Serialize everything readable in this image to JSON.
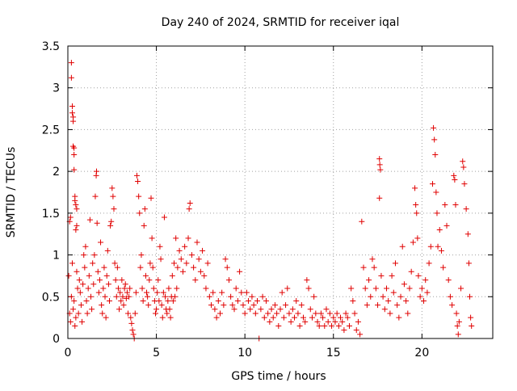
{
  "chart_data": {
    "type": "scatter",
    "title": "Day 240 of 2024, SRMTID for receiver iqal",
    "xlabel": "GPS time / hours",
    "ylabel": "SRMTID / TECUs",
    "xlim": [
      0,
      24
    ],
    "ylim": [
      0,
      3.5
    ],
    "xticks": [
      0,
      5,
      10,
      15,
      20
    ],
    "xtick_labels": [
      "0",
      "5",
      "10",
      "15",
      "20"
    ],
    "yticks": [
      0,
      0.5,
      1,
      1.5,
      2,
      2.5,
      3,
      3.5
    ],
    "ytick_labels": [
      "0",
      "0.5",
      "1",
      "1.5",
      "2",
      "2.5",
      "3",
      "3.5"
    ],
    "grid": true,
    "marker": "+",
    "series": [
      {
        "name": "SRMTID",
        "color": "#e00000",
        "points": [
          [
            0.05,
            0.75
          ],
          [
            0.1,
            1.4
          ],
          [
            0.15,
            1.45
          ],
          [
            0.2,
            3.3
          ],
          [
            0.2,
            3.12
          ],
          [
            0.25,
            2.78
          ],
          [
            0.25,
            2.7
          ],
          [
            0.3,
            2.65
          ],
          [
            0.3,
            2.6
          ],
          [
            0.3,
            2.3
          ],
          [
            0.35,
            2.28
          ],
          [
            0.35,
            2.2
          ],
          [
            0.35,
            2.02
          ],
          [
            0.4,
            1.7
          ],
          [
            0.4,
            1.65
          ],
          [
            0.45,
            1.6
          ],
          [
            0.5,
            1.55
          ],
          [
            0.5,
            1.35
          ],
          [
            0.45,
            1.3
          ],
          [
            0.1,
            0.3
          ],
          [
            0.15,
            0.2
          ],
          [
            0.2,
            0.5
          ],
          [
            0.25,
            0.9
          ],
          [
            0.3,
            0.35
          ],
          [
            0.35,
            0.45
          ],
          [
            0.4,
            0.15
          ],
          [
            0.45,
            0.25
          ],
          [
            0.5,
            0.8
          ],
          [
            0.55,
            0.6
          ],
          [
            0.6,
            0.3
          ],
          [
            0.65,
            0.7
          ],
          [
            0.7,
            0.55
          ],
          [
            0.75,
            0.4
          ],
          [
            0.8,
            0.2
          ],
          [
            0.85,
            0.65
          ],
          [
            0.9,
            1.0
          ],
          [
            0.95,
            0.85
          ],
          [
            1.0,
            1.1
          ],
          [
            1.05,
            0.45
          ],
          [
            1.1,
            0.3
          ],
          [
            1.15,
            0.6
          ],
          [
            1.2,
            0.75
          ],
          [
            1.25,
            1.42
          ],
          [
            1.3,
            0.5
          ],
          [
            1.35,
            0.35
          ],
          [
            1.4,
            0.9
          ],
          [
            1.45,
            0.65
          ],
          [
            1.5,
            1.0
          ],
          [
            1.55,
            1.7
          ],
          [
            1.6,
            1.95
          ],
          [
            1.62,
            2.0
          ],
          [
            1.65,
            1.38
          ],
          [
            1.7,
            0.8
          ],
          [
            1.75,
            0.55
          ],
          [
            1.8,
            0.7
          ],
          [
            1.85,
            1.15
          ],
          [
            1.9,
            0.4
          ],
          [
            1.95,
            0.3
          ],
          [
            2.0,
            0.6
          ],
          [
            2.05,
            0.85
          ],
          [
            2.1,
            0.5
          ],
          [
            2.15,
            0.25
          ],
          [
            2.2,
            0.75
          ],
          [
            2.25,
            1.05
          ],
          [
            2.3,
            0.65
          ],
          [
            2.35,
            0.45
          ],
          [
            2.4,
            1.35
          ],
          [
            2.45,
            1.4
          ],
          [
            2.5,
            1.8
          ],
          [
            2.55,
            1.7
          ],
          [
            2.6,
            1.55
          ],
          [
            2.65,
            0.9
          ],
          [
            2.7,
            0.7
          ],
          [
            2.75,
            0.5
          ],
          [
            2.8,
            0.85
          ],
          [
            2.85,
            0.6
          ],
          [
            2.9,
            0.35
          ],
          [
            2.95,
            0.55
          ],
          [
            3.0,
            0.45
          ],
          [
            3.05,
            0.7
          ],
          [
            3.1,
            0.5
          ],
          [
            3.15,
            0.4
          ],
          [
            3.2,
            0.6
          ],
          [
            3.25,
            0.65
          ],
          [
            3.3,
            0.48
          ],
          [
            3.35,
            0.55
          ],
          [
            3.4,
            0.3
          ],
          [
            3.45,
            0.5
          ],
          [
            3.5,
            0.6
          ],
          [
            3.55,
            0.25
          ],
          [
            3.6,
            0.18
          ],
          [
            3.65,
            0.1
          ],
          [
            3.7,
            0.05
          ],
          [
            3.75,
            0.0
          ],
          [
            3.8,
            0.3
          ],
          [
            3.85,
            0.55
          ],
          [
            3.9,
            1.95
          ],
          [
            3.95,
            1.88
          ],
          [
            4.0,
            1.7
          ],
          [
            4.05,
            1.5
          ],
          [
            4.1,
            0.85
          ],
          [
            4.15,
            1.0
          ],
          [
            4.2,
            0.6
          ],
          [
            4.25,
            0.45
          ],
          [
            4.3,
            1.35
          ],
          [
            4.35,
            1.55
          ],
          [
            4.4,
            0.75
          ],
          [
            4.45,
            0.55
          ],
          [
            4.5,
            0.5
          ],
          [
            4.55,
            0.4
          ],
          [
            4.6,
            0.7
          ],
          [
            4.65,
            0.9
          ],
          [
            4.7,
            1.68
          ],
          [
            4.75,
            1.2
          ],
          [
            4.8,
            0.85
          ],
          [
            4.85,
            0.6
          ],
          [
            4.9,
            0.45
          ],
          [
            4.95,
            0.3
          ],
          [
            5.0,
            0.35
          ],
          [
            5.05,
            0.55
          ],
          [
            5.1,
            0.7
          ],
          [
            5.15,
            0.45
          ],
          [
            5.2,
            1.1
          ],
          [
            5.25,
            0.95
          ],
          [
            5.3,
            0.4
          ],
          [
            5.35,
            0.25
          ],
          [
            5.4,
            0.55
          ],
          [
            5.45,
            1.45
          ],
          [
            5.5,
            0.5
          ],
          [
            5.55,
            0.35
          ],
          [
            5.6,
            0.3
          ],
          [
            5.65,
            0.45
          ],
          [
            5.7,
            0.6
          ],
          [
            5.75,
            0.35
          ],
          [
            5.8,
            0.25
          ],
          [
            5.85,
            0.5
          ],
          [
            5.9,
            0.75
          ],
          [
            5.95,
            0.45
          ],
          [
            6.0,
            0.9
          ],
          [
            6.05,
            0.5
          ],
          [
            6.1,
            1.2
          ],
          [
            6.15,
            0.6
          ],
          [
            6.2,
            0.85
          ],
          [
            6.3,
            1.05
          ],
          [
            6.4,
            0.95
          ],
          [
            6.5,
            0.8
          ],
          [
            6.6,
            1.1
          ],
          [
            6.7,
            0.9
          ],
          [
            6.8,
            1.2
          ],
          [
            6.85,
            1.55
          ],
          [
            6.9,
            1.62
          ],
          [
            7.0,
            1.0
          ],
          [
            7.1,
            0.85
          ],
          [
            7.2,
            0.7
          ],
          [
            7.3,
            1.15
          ],
          [
            7.4,
            0.95
          ],
          [
            7.5,
            0.8
          ],
          [
            7.6,
            1.05
          ],
          [
            7.7,
            0.75
          ],
          [
            7.8,
            0.6
          ],
          [
            7.9,
            0.9
          ],
          [
            8.0,
            0.5
          ],
          [
            8.1,
            0.4
          ],
          [
            8.2,
            0.55
          ],
          [
            8.3,
            0.35
          ],
          [
            8.4,
            0.25
          ],
          [
            8.5,
            0.45
          ],
          [
            8.6,
            0.3
          ],
          [
            8.7,
            0.55
          ],
          [
            8.8,
            0.4
          ],
          [
            8.9,
            0.95
          ],
          [
            9.0,
            0.85
          ],
          [
            9.1,
            0.7
          ],
          [
            9.2,
            0.5
          ],
          [
            9.3,
            0.4
          ],
          [
            9.4,
            0.35
          ],
          [
            9.5,
            0.6
          ],
          [
            9.6,
            0.45
          ],
          [
            9.7,
            0.8
          ],
          [
            9.8,
            0.55
          ],
          [
            9.9,
            0.4
          ],
          [
            10.0,
            0.3
          ],
          [
            10.1,
            0.55
          ],
          [
            10.2,
            0.45
          ],
          [
            10.3,
            0.35
          ],
          [
            10.4,
            0.5
          ],
          [
            10.5,
            0.4
          ],
          [
            10.6,
            0.3
          ],
          [
            10.7,
            0.45
          ],
          [
            10.8,
            0.0
          ],
          [
            10.9,
            0.35
          ],
          [
            11.0,
            0.5
          ],
          [
            11.1,
            0.25
          ],
          [
            11.2,
            0.45
          ],
          [
            11.3,
            0.3
          ],
          [
            11.4,
            0.2
          ],
          [
            11.5,
            0.35
          ],
          [
            11.6,
            0.25
          ],
          [
            11.7,
            0.4
          ],
          [
            11.8,
            0.3
          ],
          [
            11.9,
            0.15
          ],
          [
            12.0,
            0.35
          ],
          [
            12.1,
            0.55
          ],
          [
            12.2,
            0.25
          ],
          [
            12.3,
            0.4
          ],
          [
            12.4,
            0.6
          ],
          [
            12.5,
            0.3
          ],
          [
            12.6,
            0.2
          ],
          [
            12.7,
            0.35
          ],
          [
            12.8,
            0.25
          ],
          [
            12.9,
            0.45
          ],
          [
            13.0,
            0.3
          ],
          [
            13.1,
            0.15
          ],
          [
            13.2,
            0.4
          ],
          [
            13.3,
            0.25
          ],
          [
            13.4,
            0.2
          ],
          [
            13.5,
            0.7
          ],
          [
            13.6,
            0.6
          ],
          [
            13.7,
            0.35
          ],
          [
            13.8,
            0.25
          ],
          [
            13.9,
            0.5
          ],
          [
            14.0,
            0.3
          ],
          [
            14.1,
            0.2
          ],
          [
            14.2,
            0.15
          ],
          [
            14.3,
            0.3
          ],
          [
            14.4,
            0.25
          ],
          [
            14.5,
            0.15
          ],
          [
            14.6,
            0.35
          ],
          [
            14.7,
            0.2
          ],
          [
            14.8,
            0.3
          ],
          [
            14.9,
            0.15
          ],
          [
            15.0,
            0.25
          ],
          [
            15.1,
            0.2
          ],
          [
            15.2,
            0.3
          ],
          [
            15.3,
            0.15
          ],
          [
            15.4,
            0.25
          ],
          [
            15.5,
            0.2
          ],
          [
            15.6,
            0.1
          ],
          [
            15.7,
            0.3
          ],
          [
            15.8,
            0.25
          ],
          [
            15.9,
            0.15
          ],
          [
            16.0,
            0.6
          ],
          [
            16.1,
            0.45
          ],
          [
            16.2,
            0.3
          ],
          [
            16.3,
            0.1
          ],
          [
            16.4,
            0.2
          ],
          [
            16.5,
            0.05
          ],
          [
            16.6,
            1.4
          ],
          [
            16.7,
            0.85
          ],
          [
            16.8,
            0.6
          ],
          [
            16.9,
            0.4
          ],
          [
            17.0,
            0.7
          ],
          [
            17.1,
            0.5
          ],
          [
            17.2,
            0.95
          ],
          [
            17.3,
            0.85
          ],
          [
            17.4,
            0.6
          ],
          [
            17.5,
            0.4
          ],
          [
            17.6,
            2.15
          ],
          [
            17.62,
            2.08
          ],
          [
            17.65,
            2.02
          ],
          [
            17.6,
            1.68
          ],
          [
            17.7,
            0.75
          ],
          [
            17.8,
            0.5
          ],
          [
            17.9,
            0.35
          ],
          [
            18.0,
            0.6
          ],
          [
            18.1,
            0.45
          ],
          [
            18.2,
            0.3
          ],
          [
            18.3,
            0.75
          ],
          [
            18.4,
            0.55
          ],
          [
            18.5,
            0.9
          ],
          [
            18.6,
            0.4
          ],
          [
            18.7,
            0.25
          ],
          [
            18.8,
            0.5
          ],
          [
            18.9,
            1.1
          ],
          [
            19.0,
            0.65
          ],
          [
            19.1,
            0.45
          ],
          [
            19.2,
            0.3
          ],
          [
            19.3,
            0.6
          ],
          [
            19.4,
            0.8
          ],
          [
            19.5,
            1.15
          ],
          [
            19.6,
            1.8
          ],
          [
            19.65,
            1.6
          ],
          [
            19.7,
            1.5
          ],
          [
            19.75,
            1.2
          ],
          [
            19.8,
            0.75
          ],
          [
            19.9,
            0.5
          ],
          [
            20.0,
            0.6
          ],
          [
            20.1,
            0.45
          ],
          [
            20.2,
            0.7
          ],
          [
            20.3,
            0.55
          ],
          [
            20.4,
            0.9
          ],
          [
            20.5,
            1.1
          ],
          [
            20.6,
            1.85
          ],
          [
            20.65,
            2.52
          ],
          [
            20.7,
            2.38
          ],
          [
            20.75,
            2.2
          ],
          [
            20.8,
            1.75
          ],
          [
            20.85,
            1.5
          ],
          [
            20.9,
            1.1
          ],
          [
            21.0,
            1.3
          ],
          [
            21.1,
            1.05
          ],
          [
            21.2,
            0.85
          ],
          [
            21.3,
            1.6
          ],
          [
            21.4,
            1.35
          ],
          [
            21.5,
            0.7
          ],
          [
            21.6,
            0.5
          ],
          [
            21.7,
            0.4
          ],
          [
            21.8,
            1.95
          ],
          [
            21.85,
            1.9
          ],
          [
            21.9,
            1.6
          ],
          [
            21.95,
            0.3
          ],
          [
            22.0,
            0.15
          ],
          [
            22.05,
            0.05
          ],
          [
            22.1,
            0.2
          ],
          [
            22.2,
            0.6
          ],
          [
            22.3,
            2.12
          ],
          [
            22.35,
            2.05
          ],
          [
            22.4,
            1.85
          ],
          [
            22.5,
            1.55
          ],
          [
            22.6,
            1.25
          ],
          [
            22.65,
            0.9
          ],
          [
            22.7,
            0.5
          ],
          [
            22.75,
            0.25
          ],
          [
            22.8,
            0.15
          ]
        ]
      }
    ]
  }
}
